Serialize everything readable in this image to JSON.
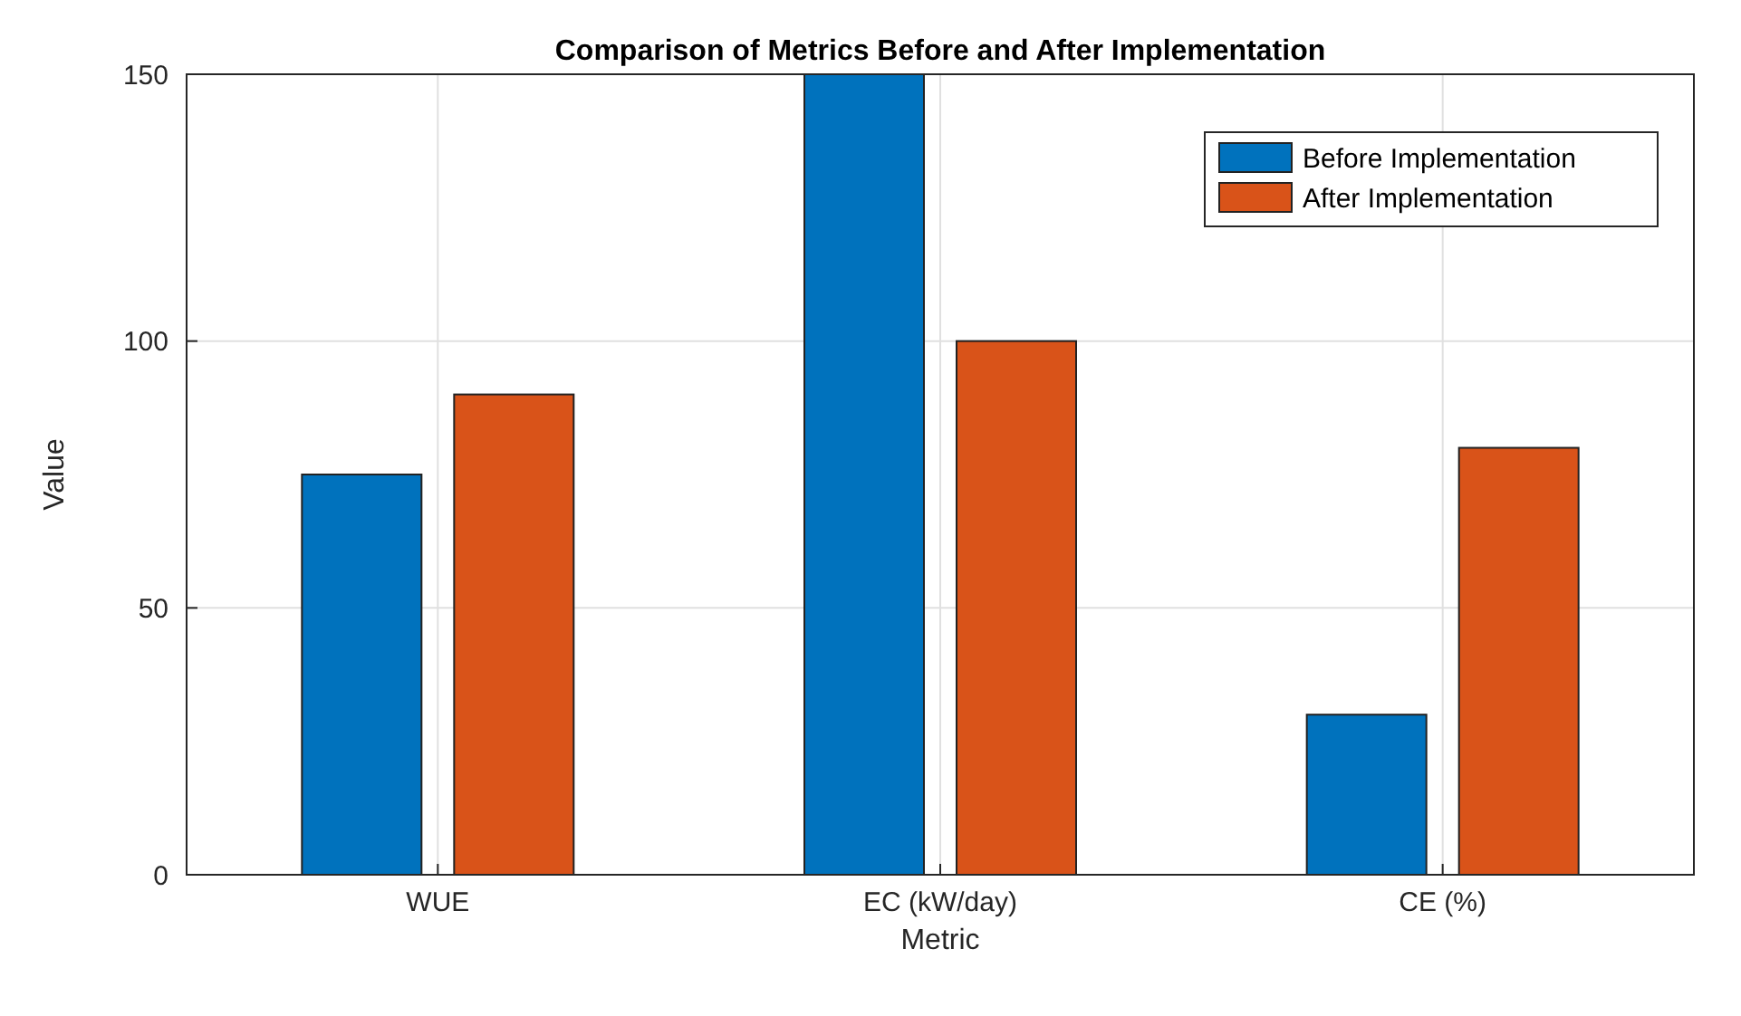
{
  "chart_data": {
    "type": "bar",
    "title": "Comparison of Metrics Before and After Implementation",
    "xlabel": "Metric",
    "ylabel": "Value",
    "categories": [
      "WUE",
      "EC (kW/day)",
      "CE (%)"
    ],
    "series": [
      {
        "name": "Before Implementation",
        "color": "#0072bd",
        "values": [
          75,
          150,
          30
        ]
      },
      {
        "name": "After Implementation",
        "color": "#d95319",
        "values": [
          90,
          100,
          80
        ]
      }
    ],
    "ylim": [
      0,
      150
    ],
    "yticks": [
      0,
      50,
      100,
      150
    ],
    "grid": true,
    "legend": "top right"
  }
}
